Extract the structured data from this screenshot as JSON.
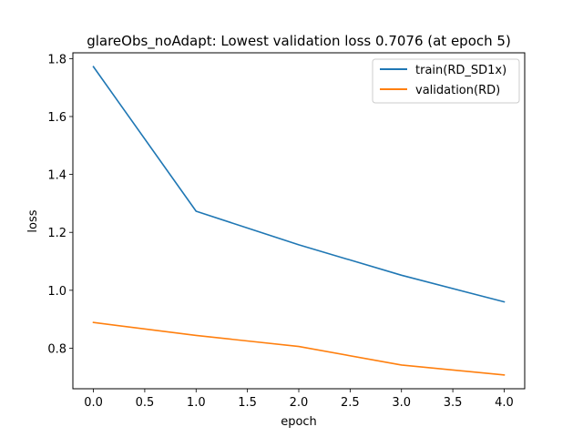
{
  "chart_data": {
    "type": "line",
    "title": "glareObs_noAdapt: Lowest validation loss 0.7076 (at epoch 5)",
    "xlabel": "epoch",
    "ylabel": "loss",
    "xlim": [
      -0.2,
      4.2
    ],
    "ylim": [
      0.66,
      1.82
    ],
    "xticks": [
      0.0,
      0.5,
      1.0,
      1.5,
      2.0,
      2.5,
      3.0,
      3.5,
      4.0
    ],
    "xtick_labels": [
      "0.0",
      "0.5",
      "1.0",
      "1.5",
      "2.0",
      "2.5",
      "3.0",
      "3.5",
      "4.0"
    ],
    "yticks": [
      0.8,
      1.0,
      1.2,
      1.4,
      1.6,
      1.8
    ],
    "ytick_labels": [
      "0.8",
      "1.0",
      "1.2",
      "1.4",
      "1.6",
      "1.8"
    ],
    "grid": false,
    "legend_position": "top-right",
    "x": [
      0,
      1,
      2,
      3,
      4
    ],
    "series": [
      {
        "name": "train(RD_SD1x)",
        "color": "#1f77b4",
        "values": [
          1.772,
          1.273,
          1.157,
          1.052,
          0.96
        ]
      },
      {
        "name": "validation(RD)",
        "color": "#ff7f0e",
        "values": [
          0.889,
          0.844,
          0.806,
          0.742,
          0.7076
        ]
      }
    ]
  }
}
